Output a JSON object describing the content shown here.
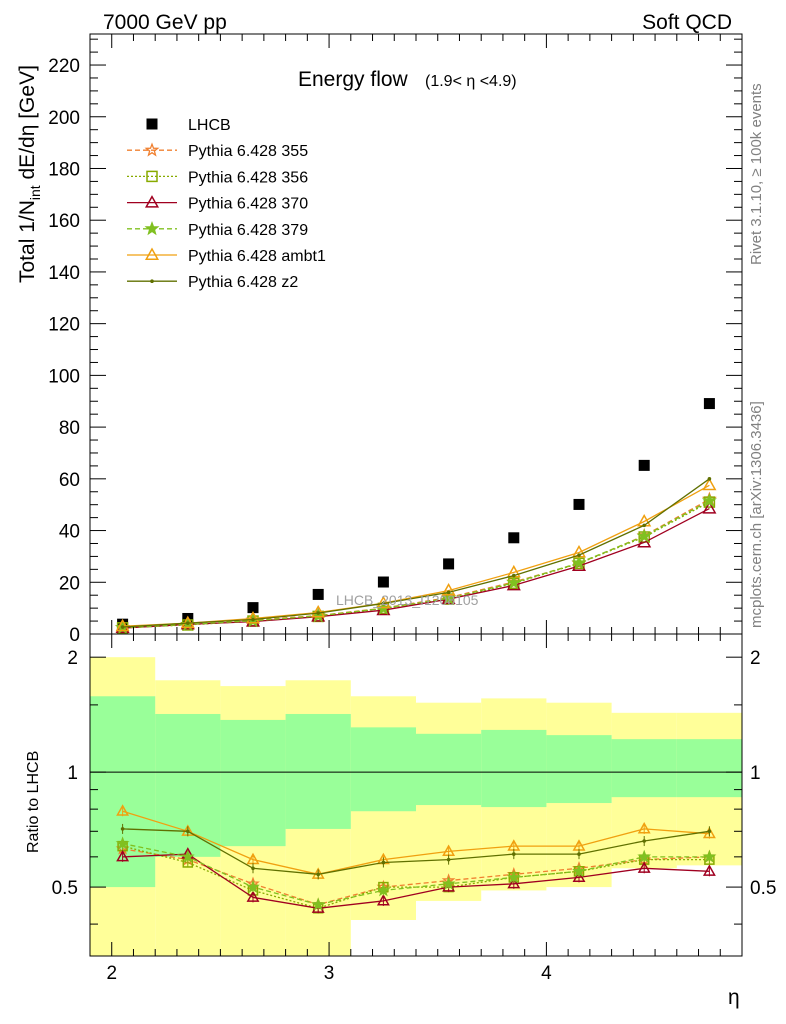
{
  "header": {
    "left": "7000 GeV pp",
    "right": "Soft QCD"
  },
  "side_labels": {
    "rivet": "Rivet 3.1.10, ≥ 100k events",
    "mcplots": "mcplots.cern.ch [arXiv:1306.3436]"
  },
  "chart_data": [
    {
      "type": "scatter",
      "title": "Energy flow",
      "title_range": "(1.9< η <4.9)",
      "ylabel": "Total 1/N",
      "ylabel_sub": "int",
      "ylabel_tail": " dE/dη [GeV]",
      "watermark": "LHCB_2013_I1208105",
      "xlim": [
        1.9,
        4.9
      ],
      "ylim": [
        0,
        232
      ],
      "yticks": [
        0,
        20,
        40,
        60,
        80,
        100,
        120,
        140,
        160,
        180,
        200,
        220
      ],
      "x": [
        2.05,
        2.35,
        2.65,
        2.95,
        3.25,
        3.55,
        3.85,
        4.15,
        4.45,
        4.75
      ],
      "series": [
        {
          "name": "LHCB",
          "marker": "square",
          "line": "none",
          "color": "#000000",
          "values": [
            3.8,
            6.0,
            10.2,
            15.3,
            20.1,
            27.1,
            37.2,
            50.1,
            65.2,
            89.1
          ]
        },
        {
          "name": "Pythia 6.428 355",
          "marker": "star-open",
          "line": "dashed",
          "color": "#f08030",
          "values": [
            2.4,
            3.6,
            5.4,
            7.1,
            10.0,
            14.1,
            20.1,
            27.3,
            38.0,
            52.1
          ]
        },
        {
          "name": "Pythia 6.428 356",
          "marker": "square-open",
          "line": "dotted",
          "color": "#88aa00",
          "values": [
            2.4,
            3.5,
            5.0,
            6.8,
            9.9,
            13.5,
            19.6,
            27.3,
            37.5,
            51.0
          ]
        },
        {
          "name": "Pythia 6.428 370",
          "marker": "triangle-open",
          "line": "solid",
          "color": "#a00020",
          "values": [
            2.3,
            3.7,
            4.8,
            6.7,
            9.2,
            13.5,
            18.8,
            26.3,
            35.4,
            48.5
          ]
        },
        {
          "name": "Pythia 6.428 379",
          "marker": "star",
          "line": "dashed",
          "color": "#80c020",
          "values": [
            2.4,
            3.7,
            5.1,
            7.0,
            9.9,
            13.8,
            19.8,
            27.5,
            37.8,
            51.5
          ]
        },
        {
          "name": "Pythia 6.428 ambt1",
          "marker": "triangle-open",
          "line": "solid",
          "color": "#f0a010",
          "values": [
            3.0,
            4.2,
            6.0,
            8.3,
            11.9,
            16.8,
            23.8,
            31.5,
            43.5,
            57.5
          ]
        },
        {
          "name": "Pythia 6.428 z2",
          "marker": "dot",
          "line": "solid",
          "color": "#607000",
          "values": [
            2.7,
            4.2,
            5.6,
            8.1,
            11.8,
            16.1,
            22.6,
            30.5,
            42.0,
            60.0
          ]
        }
      ],
      "legend_position": "top-left"
    },
    {
      "type": "line",
      "ylabel": "Ratio to LHCB",
      "xlabel": "η",
      "xlim": [
        1.9,
        4.9
      ],
      "ylim": [
        0.33,
        2.3
      ],
      "yticks": [
        0.5,
        1,
        2
      ],
      "ytick_labels": [
        "0.5",
        "1",
        "2"
      ],
      "xticks": [
        2,
        3,
        4
      ],
      "xtick_labels": [
        "2",
        "3",
        "4"
      ],
      "log_y": true,
      "x": [
        2.05,
        2.35,
        2.65,
        2.95,
        3.25,
        3.55,
        3.85,
        4.15,
        4.45,
        4.75
      ],
      "bin_edges": [
        1.9,
        2.2,
        2.5,
        2.8,
        3.1,
        3.4,
        3.7,
        4.0,
        4.3,
        4.6,
        4.9
      ],
      "bands": {
        "yellow": {
          "color": "#ffff99",
          "lower": [
            0.33,
            0.33,
            0.33,
            0.33,
            0.41,
            0.46,
            0.49,
            0.5,
            0.56,
            0.57
          ],
          "upper": [
            2.0,
            1.74,
            1.68,
            1.74,
            1.58,
            1.52,
            1.56,
            1.52,
            1.43,
            1.43
          ]
        },
        "green": {
          "color": "#99ff99",
          "lower": [
            0.5,
            0.6,
            0.64,
            0.71,
            0.79,
            0.82,
            0.81,
            0.83,
            0.86,
            0.86
          ],
          "upper": [
            1.58,
            1.42,
            1.37,
            1.42,
            1.31,
            1.26,
            1.29,
            1.25,
            1.22,
            1.22
          ]
        }
      },
      "series": [
        {
          "name": "Pythia 6.428 355",
          "color": "#f08030",
          "line": "dashed",
          "values": [
            0.63,
            0.59,
            0.51,
            0.45,
            0.5,
            0.52,
            0.54,
            0.56,
            0.59,
            0.6
          ]
        },
        {
          "name": "Pythia 6.428 356",
          "color": "#88aa00",
          "line": "dotted",
          "values": [
            0.64,
            0.58,
            0.49,
            0.44,
            0.5,
            0.5,
            0.53,
            0.55,
            0.59,
            0.59
          ]
        },
        {
          "name": "Pythia 6.428 370",
          "color": "#a00020",
          "line": "solid",
          "values": [
            0.6,
            0.61,
            0.47,
            0.44,
            0.46,
            0.5,
            0.51,
            0.53,
            0.56,
            0.55
          ]
        },
        {
          "name": "Pythia 6.428 379",
          "color": "#80c020",
          "line": "dashed",
          "values": [
            0.65,
            0.6,
            0.5,
            0.45,
            0.49,
            0.51,
            0.53,
            0.55,
            0.6,
            0.6
          ]
        },
        {
          "name": "Pythia 6.428 ambt1",
          "color": "#f0a010",
          "line": "solid",
          "values": [
            0.79,
            0.7,
            0.59,
            0.54,
            0.59,
            0.62,
            0.64,
            0.64,
            0.71,
            0.69
          ]
        },
        {
          "name": "Pythia 6.428 z2",
          "color": "#607000",
          "line": "solid",
          "values": [
            0.71,
            0.7,
            0.56,
            0.54,
            0.58,
            0.59,
            0.61,
            0.61,
            0.66,
            0.7
          ]
        }
      ]
    }
  ]
}
